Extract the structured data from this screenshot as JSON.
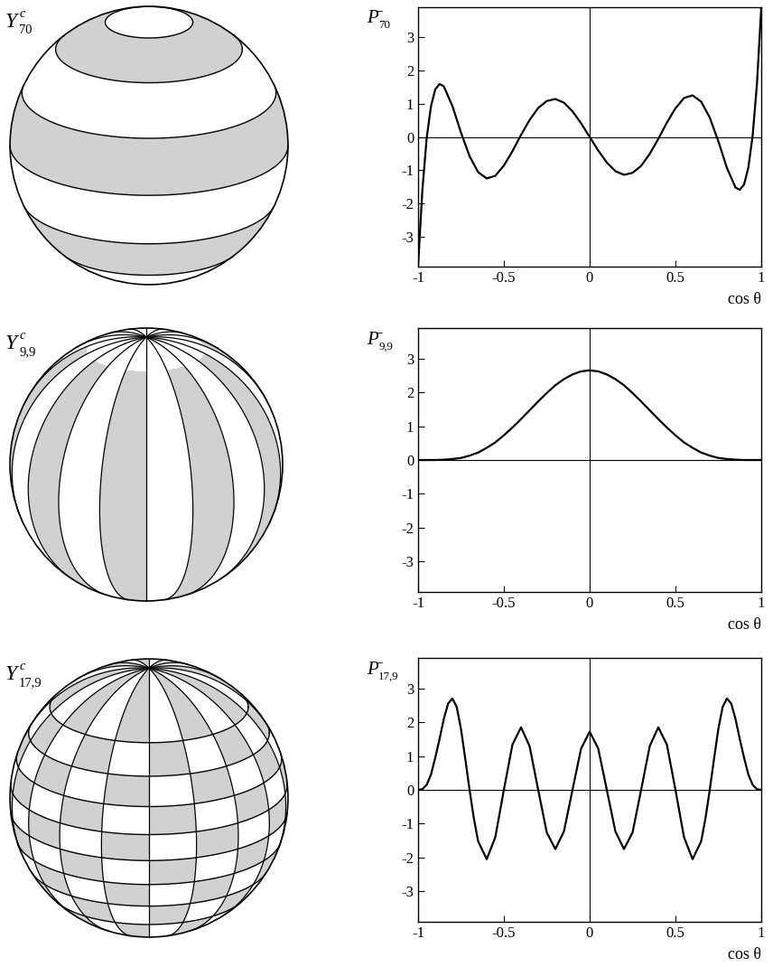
{
  "chart_data": [
    {
      "type": "line",
      "color": "#000000",
      "sphere_label": {
        "symbol": "Y",
        "superscript": "c",
        "subscript": "70"
      },
      "ylabel": {
        "symbol": "P̄",
        "subscript": "70"
      },
      "xlabel": "cos θ",
      "x": [
        -1,
        -0.975,
        -0.95,
        -0.925,
        -0.9,
        -0.875,
        -0.85,
        -0.8,
        -0.75,
        -0.7,
        -0.65,
        -0.6,
        -0.55,
        -0.5,
        -0.45,
        -0.4,
        -0.35,
        -0.3,
        -0.25,
        -0.2,
        -0.15,
        -0.1,
        -0.05,
        0,
        0.05,
        0.1,
        0.15,
        0.2,
        0.25,
        0.3,
        0.35,
        0.4,
        0.45,
        0.5,
        0.55,
        0.6,
        0.65,
        0.7,
        0.75,
        0.8,
        0.85,
        0.875,
        0.9,
        0.925,
        0.95,
        0.975,
        1
      ],
      "values": [
        -3.87,
        -1.59,
        -0.04,
        0.92,
        1.43,
        1.59,
        1.52,
        0.93,
        0.13,
        -0.58,
        -1.06,
        -1.25,
        -1.17,
        -0.86,
        -0.43,
        0.06,
        0.51,
        0.87,
        1.08,
        1.14,
        1.03,
        0.77,
        0.41,
        0,
        -0.41,
        -0.77,
        -1.03,
        -1.14,
        -1.08,
        -0.87,
        -0.51,
        -0.06,
        0.43,
        0.86,
        1.17,
        1.25,
        1.06,
        0.58,
        -0.13,
        -0.93,
        -1.52,
        -1.59,
        -1.43,
        -0.92,
        0.04,
        1.59,
        3.87
      ],
      "xlim": [
        -1,
        1
      ],
      "ylim": [
        -3.9,
        3.9
      ],
      "xticks": [
        -1,
        -0.5,
        0,
        0.5,
        1
      ],
      "yticks": [
        -3,
        -2,
        -1,
        0,
        1,
        2,
        3
      ]
    },
    {
      "type": "line",
      "color": "#000000",
      "sphere_label": {
        "symbol": "Y",
        "superscript": "c",
        "subscript": "9,9"
      },
      "ylabel": {
        "symbol": "P̄",
        "subscript": "9,9"
      },
      "xlabel": "cos θ",
      "x": [
        -1,
        -0.95,
        -0.9,
        -0.85,
        -0.8,
        -0.75,
        -0.7,
        -0.65,
        -0.6,
        -0.55,
        -0.5,
        -0.45,
        -0.4,
        -0.35,
        -0.3,
        -0.25,
        -0.2,
        -0.15,
        -0.1,
        -0.05,
        0,
        0.05,
        0.1,
        0.15,
        0.2,
        0.25,
        0.3,
        0.35,
        0.4,
        0.45,
        0.5,
        0.55,
        0.6,
        0.65,
        0.7,
        0.75,
        0.8,
        0.85,
        0.9,
        0.95,
        1
      ],
      "values": [
        0,
        0,
        0,
        0.01,
        0.03,
        0.06,
        0.13,
        0.22,
        0.36,
        0.52,
        0.73,
        0.96,
        1.21,
        1.47,
        1.73,
        1.98,
        2.21,
        2.39,
        2.53,
        2.62,
        2.65,
        2.62,
        2.53,
        2.39,
        2.21,
        1.98,
        1.73,
        1.47,
        1.21,
        0.96,
        0.73,
        0.52,
        0.36,
        0.22,
        0.13,
        0.06,
        0.03,
        0.01,
        0,
        0,
        0
      ],
      "xlim": [
        -1,
        1
      ],
      "ylim": [
        -3.9,
        3.9
      ],
      "xticks": [
        -1,
        -0.5,
        0,
        0.5,
        1
      ],
      "yticks": [
        -3,
        -2,
        -1,
        0,
        1,
        2,
        3
      ]
    },
    {
      "type": "line",
      "color": "#000000",
      "sphere_label": {
        "symbol": "Y",
        "superscript": "c",
        "subscript": "17,9"
      },
      "ylabel": {
        "symbol": "P̄",
        "subscript": "17,9"
      },
      "xlabel": "cos θ",
      "x": [
        -1,
        -0.975,
        -0.95,
        -0.925,
        -0.9,
        -0.875,
        -0.85,
        -0.825,
        -0.8,
        -0.775,
        -0.75,
        -0.725,
        -0.7,
        -0.675,
        -0.65,
        -0.6,
        -0.55,
        -0.5,
        -0.45,
        -0.4,
        -0.35,
        -0.3,
        -0.25,
        -0.2,
        -0.15,
        -0.1,
        -0.05,
        0,
        0.05,
        0.1,
        0.15,
        0.2,
        0.25,
        0.3,
        0.35,
        0.4,
        0.45,
        0.5,
        0.55,
        0.6,
        0.65,
        0.675,
        0.7,
        0.725,
        0.75,
        0.775,
        0.8,
        0.825,
        0.85,
        0.875,
        0.9,
        0.925,
        0.95,
        0.975,
        1
      ],
      "values": [
        0,
        0.02,
        0.15,
        0.45,
        0.95,
        1.5,
        2.1,
        2.55,
        2.7,
        2.45,
        1.8,
        0.92,
        0,
        -0.84,
        -1.52,
        -2.05,
        -1.4,
        0,
        1.34,
        1.85,
        1.29,
        0,
        -1.26,
        -1.75,
        -1.23,
        0,
        1.22,
        1.72,
        1.22,
        0,
        -1.23,
        -1.75,
        -1.26,
        0,
        1.29,
        1.85,
        1.34,
        0,
        -1.4,
        -2.05,
        -1.52,
        -0.84,
        0,
        0.92,
        1.8,
        2.45,
        2.7,
        2.55,
        2.1,
        1.5,
        0.95,
        0.45,
        0.15,
        0.02,
        0
      ],
      "xlim": [
        -1,
        1
      ],
      "ylim": [
        -3.9,
        3.9
      ],
      "xticks": [
        -1,
        -0.5,
        0,
        0.5,
        1
      ],
      "yticks": [
        -3,
        -2,
        -1,
        0,
        1,
        2,
        3
      ]
    }
  ]
}
